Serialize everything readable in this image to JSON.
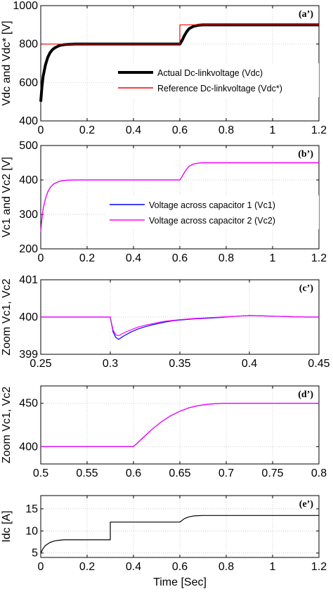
{
  "chart_data": [
    {
      "type": "line",
      "panel_label": "(a’)",
      "ylabel": "Vdc and Vdc* [V]",
      "xlabel": "",
      "xlim": [
        0,
        1.2
      ],
      "ylim": [
        400,
        1000
      ],
      "xticks": [
        "0",
        "0.2",
        "0.4",
        "0.6",
        "0.8",
        "1",
        "1.2"
      ],
      "yticks": [
        "400",
        "600",
        "800",
        "1000"
      ],
      "grid": true,
      "legend_placement": "center-right",
      "series": [
        {
          "name": "Actual Dc-linkvoltage (Vdc)",
          "color": "#000000",
          "x": [
            0,
            0.005,
            0.01,
            0.02,
            0.03,
            0.04,
            0.05,
            0.06,
            0.08,
            0.1,
            0.12,
            0.15,
            0.2,
            0.3,
            0.4,
            0.5,
            0.6,
            0.61,
            0.62,
            0.63,
            0.64,
            0.66,
            0.68,
            0.7,
            0.8,
            1.0,
            1.2
          ],
          "y": [
            500,
            575,
            630,
            690,
            730,
            755,
            770,
            780,
            792,
            797,
            799,
            800,
            800,
            800,
            800,
            800,
            800,
            820,
            845,
            865,
            880,
            893,
            898,
            900,
            900,
            900,
            900
          ]
        },
        {
          "name": "Reference Dc-linkvoltage (Vdc*)",
          "color": "#ff0000",
          "x": [
            0,
            0.6,
            0.6,
            1.2
          ],
          "y": [
            800,
            800,
            900,
            900
          ]
        }
      ]
    },
    {
      "type": "line",
      "panel_label": "(b’)",
      "ylabel": "Vc1 and Vc2 [V]",
      "xlabel": "",
      "xlim": [
        0,
        1.2
      ],
      "ylim": [
        200,
        500
      ],
      "xticks": [
        "0",
        "0.2",
        "0.4",
        "0.6",
        "0.8",
        "1",
        "1.2"
      ],
      "yticks": [
        "200",
        "300",
        "400",
        "500"
      ],
      "grid": true,
      "legend_placement": "center-right",
      "series": [
        {
          "name": "Voltage across capacitor 1 (Vc1)",
          "color": "#0000ff",
          "x": [
            0,
            0.005,
            0.01,
            0.02,
            0.03,
            0.04,
            0.05,
            0.06,
            0.08,
            0.1,
            0.12,
            0.15,
            0.2,
            0.4,
            0.6,
            0.61,
            0.62,
            0.63,
            0.64,
            0.66,
            0.68,
            0.7,
            0.8,
            1.0,
            1.2
          ],
          "y": [
            250,
            287,
            315,
            345,
            365,
            377,
            385,
            390,
            396,
            398.5,
            399.5,
            400,
            400,
            400,
            400,
            410,
            422,
            432,
            440,
            446.5,
            449,
            450,
            450,
            450,
            450
          ]
        },
        {
          "name": "Voltage across capacitor 2 (Vc2)",
          "color": "#ff00ff",
          "x": [
            0,
            0.005,
            0.01,
            0.02,
            0.03,
            0.04,
            0.05,
            0.06,
            0.08,
            0.1,
            0.12,
            0.15,
            0.2,
            0.4,
            0.6,
            0.61,
            0.62,
            0.63,
            0.64,
            0.66,
            0.68,
            0.7,
            0.8,
            1.0,
            1.2
          ],
          "y": [
            250,
            287,
            315,
            345,
            365,
            377,
            385,
            390,
            396,
            398.5,
            399.5,
            400,
            400,
            400,
            400,
            410,
            422,
            432,
            440,
            446.5,
            449,
            450,
            450,
            450,
            450
          ]
        }
      ]
    },
    {
      "type": "line",
      "panel_label": "(c’)",
      "ylabel": "Zoom Vc1, Vc2",
      "xlabel": "",
      "xlim": [
        0.25,
        0.45
      ],
      "ylim": [
        399,
        401
      ],
      "xticks": [
        "0.25",
        "0.3",
        "0.35",
        "0.4",
        "0.45"
      ],
      "yticks": [
        "399",
        "400",
        "401"
      ],
      "grid": true,
      "series": [
        {
          "color": "#0000ff",
          "x": [
            0.25,
            0.3,
            0.301,
            0.302,
            0.304,
            0.306,
            0.31,
            0.315,
            0.32,
            0.325,
            0.33,
            0.335,
            0.34,
            0.345,
            0.35,
            0.36,
            0.37,
            0.38,
            0.39,
            0.4,
            0.41,
            0.42,
            0.43,
            0.44,
            0.45
          ],
          "y": [
            400,
            400,
            399.8,
            399.6,
            399.45,
            399.4,
            399.5,
            399.6,
            399.68,
            399.74,
            399.79,
            399.83,
            399.87,
            399.9,
            399.92,
            399.95,
            399.97,
            399.99,
            400.02,
            400.04,
            400.03,
            400.02,
            400.01,
            400,
            400
          ]
        },
        {
          "color": "#ff00ff",
          "x": [
            0.25,
            0.3,
            0.301,
            0.302,
            0.304,
            0.306,
            0.31,
            0.315,
            0.32,
            0.325,
            0.33,
            0.335,
            0.34,
            0.345,
            0.35,
            0.36,
            0.37,
            0.38,
            0.39,
            0.4,
            0.41,
            0.42,
            0.43,
            0.44,
            0.45
          ],
          "y": [
            400,
            400,
            399.82,
            399.65,
            399.52,
            399.5,
            399.58,
            399.66,
            399.73,
            399.78,
            399.82,
            399.86,
            399.89,
            399.91,
            399.93,
            399.96,
            399.98,
            400,
            400.02,
            400.04,
            400.03,
            400.02,
            400.01,
            400,
            400
          ]
        }
      ]
    },
    {
      "type": "line",
      "panel_label": "(d’)",
      "ylabel": "Zoom Vc1, Vc2",
      "xlabel": "",
      "xlim": [
        0.5,
        0.8
      ],
      "ylim": [
        380,
        470
      ],
      "xticks": [
        "0.5",
        "0.55",
        "0.6",
        "0.65",
        "0.7",
        "0.75",
        "0.8"
      ],
      "yticks": [
        "400",
        "450"
      ],
      "ytick_values": [
        400,
        450
      ],
      "grid": true,
      "series": [
        {
          "color": "#0000ff",
          "x": [
            0.5,
            0.6,
            0.61,
            0.62,
            0.63,
            0.64,
            0.65,
            0.66,
            0.67,
            0.68,
            0.69,
            0.7,
            0.75,
            0.8
          ],
          "y": [
            400,
            400,
            410,
            420,
            428.5,
            435.5,
            440.8,
            444.8,
            447.3,
            448.8,
            449.6,
            450,
            450,
            450
          ]
        },
        {
          "color": "#ff00ff",
          "x": [
            0.5,
            0.6,
            0.61,
            0.62,
            0.63,
            0.64,
            0.65,
            0.66,
            0.67,
            0.68,
            0.69,
            0.7,
            0.75,
            0.8
          ],
          "y": [
            400,
            400,
            410,
            420,
            428.5,
            435.5,
            440.8,
            444.8,
            447.3,
            448.8,
            449.6,
            450,
            450,
            450
          ]
        }
      ]
    },
    {
      "type": "line",
      "panel_label": "(e’)",
      "ylabel": "Idc [A]",
      "xlabel": "Time [Sec]",
      "xlim": [
        0,
        1.2
      ],
      "ylim": [
        4,
        18
      ],
      "xticks": [
        "0",
        "0.2",
        "0.4",
        "0.6",
        "0.8",
        "1",
        "1.2"
      ],
      "yticks": [
        "5",
        "10",
        "15"
      ],
      "ytick_values": [
        5,
        10,
        15
      ],
      "grid": true,
      "series": [
        {
          "color": "#000000",
          "x": [
            0,
            0.01,
            0.02,
            0.04,
            0.06,
            0.08,
            0.1,
            0.15,
            0.2,
            0.3,
            0.3,
            0.4,
            0.6,
            0.61,
            0.62,
            0.64,
            0.66,
            0.7,
            0.8,
            1.0,
            1.2
          ],
          "y": [
            5,
            6,
            6.7,
            7.4,
            7.75,
            7.9,
            8,
            8,
            8,
            8,
            12,
            12,
            12,
            12.4,
            12.8,
            13.2,
            13.4,
            13.5,
            13.5,
            13.5,
            13.5
          ]
        }
      ]
    }
  ]
}
